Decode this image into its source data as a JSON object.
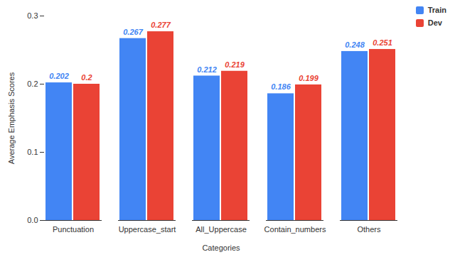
{
  "chart_data": {
    "type": "bar",
    "x_label": "Categories",
    "y_label": "Average Emphasis Scores",
    "categories": [
      "Punctuation",
      "Uppercase_start",
      "All_Uppercase",
      "Contain_numbers",
      "Others"
    ],
    "series": [
      {
        "name": "Train",
        "color": "#4285f4",
        "values": [
          0.202,
          0.267,
          0.212,
          0.186,
          0.248
        ]
      },
      {
        "name": "Dev",
        "color": "#ea4335",
        "values": [
          0.2,
          0.277,
          0.219,
          0.199,
          0.251
        ]
      }
    ],
    "ylim": [
      0,
      0.3
    ],
    "yticks": [
      {
        "value": 0,
        "label": "0.0"
      },
      0.1,
      0.2,
      0.3
    ],
    "grid": false,
    "legend": "top-right",
    "data_labels": true
  }
}
